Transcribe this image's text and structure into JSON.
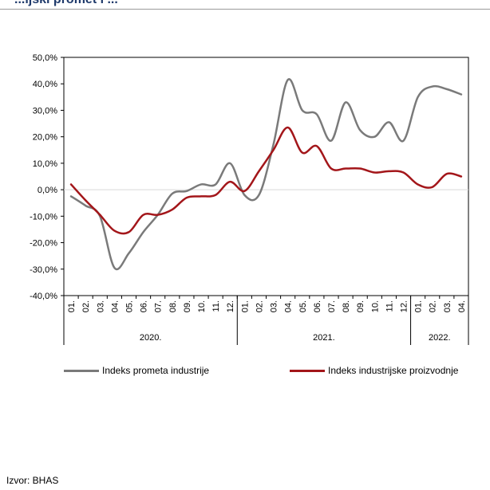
{
  "header": {
    "title": "...ijski promet i ..."
  },
  "chart_data": {
    "type": "line",
    "title": "",
    "xlabel": "",
    "ylabel": "",
    "ylim": [
      -40,
      50
    ],
    "y_ticks": [
      "50,0%",
      "40,0%",
      "30,0%",
      "20,0%",
      "10,0%",
      "0,0%",
      "-10,0%",
      "-20,0%",
      "-30,0%",
      "-40,0%"
    ],
    "y_tick_values": [
      50,
      40,
      30,
      20,
      10,
      0,
      -10,
      -20,
      -30,
      -40
    ],
    "categories": [
      "01.",
      "02.",
      "03.",
      "04.",
      "05.",
      "06.",
      "07.",
      "08.",
      "09.",
      "10.",
      "11.",
      "12.",
      "01.",
      "02.",
      "03.",
      "04.",
      "05.",
      "06.",
      "07.",
      "08.",
      "09.",
      "10.",
      "11.",
      "12.",
      "01.",
      "02.",
      "03.",
      "04."
    ],
    "groups": [
      {
        "label": "2020.",
        "count": 12
      },
      {
        "label": "2021.",
        "count": 12
      },
      {
        "label": "2022.",
        "count": 4
      }
    ],
    "series": [
      {
        "name": "Indeks prometa industrije",
        "color": "#7a7a7a",
        "values": [
          -2.5,
          -6,
          -10,
          -29.5,
          -24,
          -16,
          -9.5,
          -1.5,
          -0.5,
          2,
          2,
          10,
          -2,
          -2,
          17,
          41.5,
          30,
          28.5,
          18.5,
          33,
          22.5,
          20,
          25.5,
          18.5,
          35,
          39,
          38,
          36
        ]
      },
      {
        "name": "Indeks industrijske proizvodnje",
        "color": "#a3161a",
        "values": [
          2,
          -4,
          -9.5,
          -15.5,
          -16,
          -9.5,
          -9.5,
          -7.5,
          -3,
          -2.5,
          -2,
          3,
          -0.5,
          7,
          15,
          23.5,
          14,
          16.5,
          8,
          8,
          8,
          6.5,
          7,
          6.5,
          2,
          1,
          6,
          5
        ]
      }
    ],
    "grid": "horizontal",
    "legend_position": "bottom"
  },
  "source": "Izvor: BHAS"
}
